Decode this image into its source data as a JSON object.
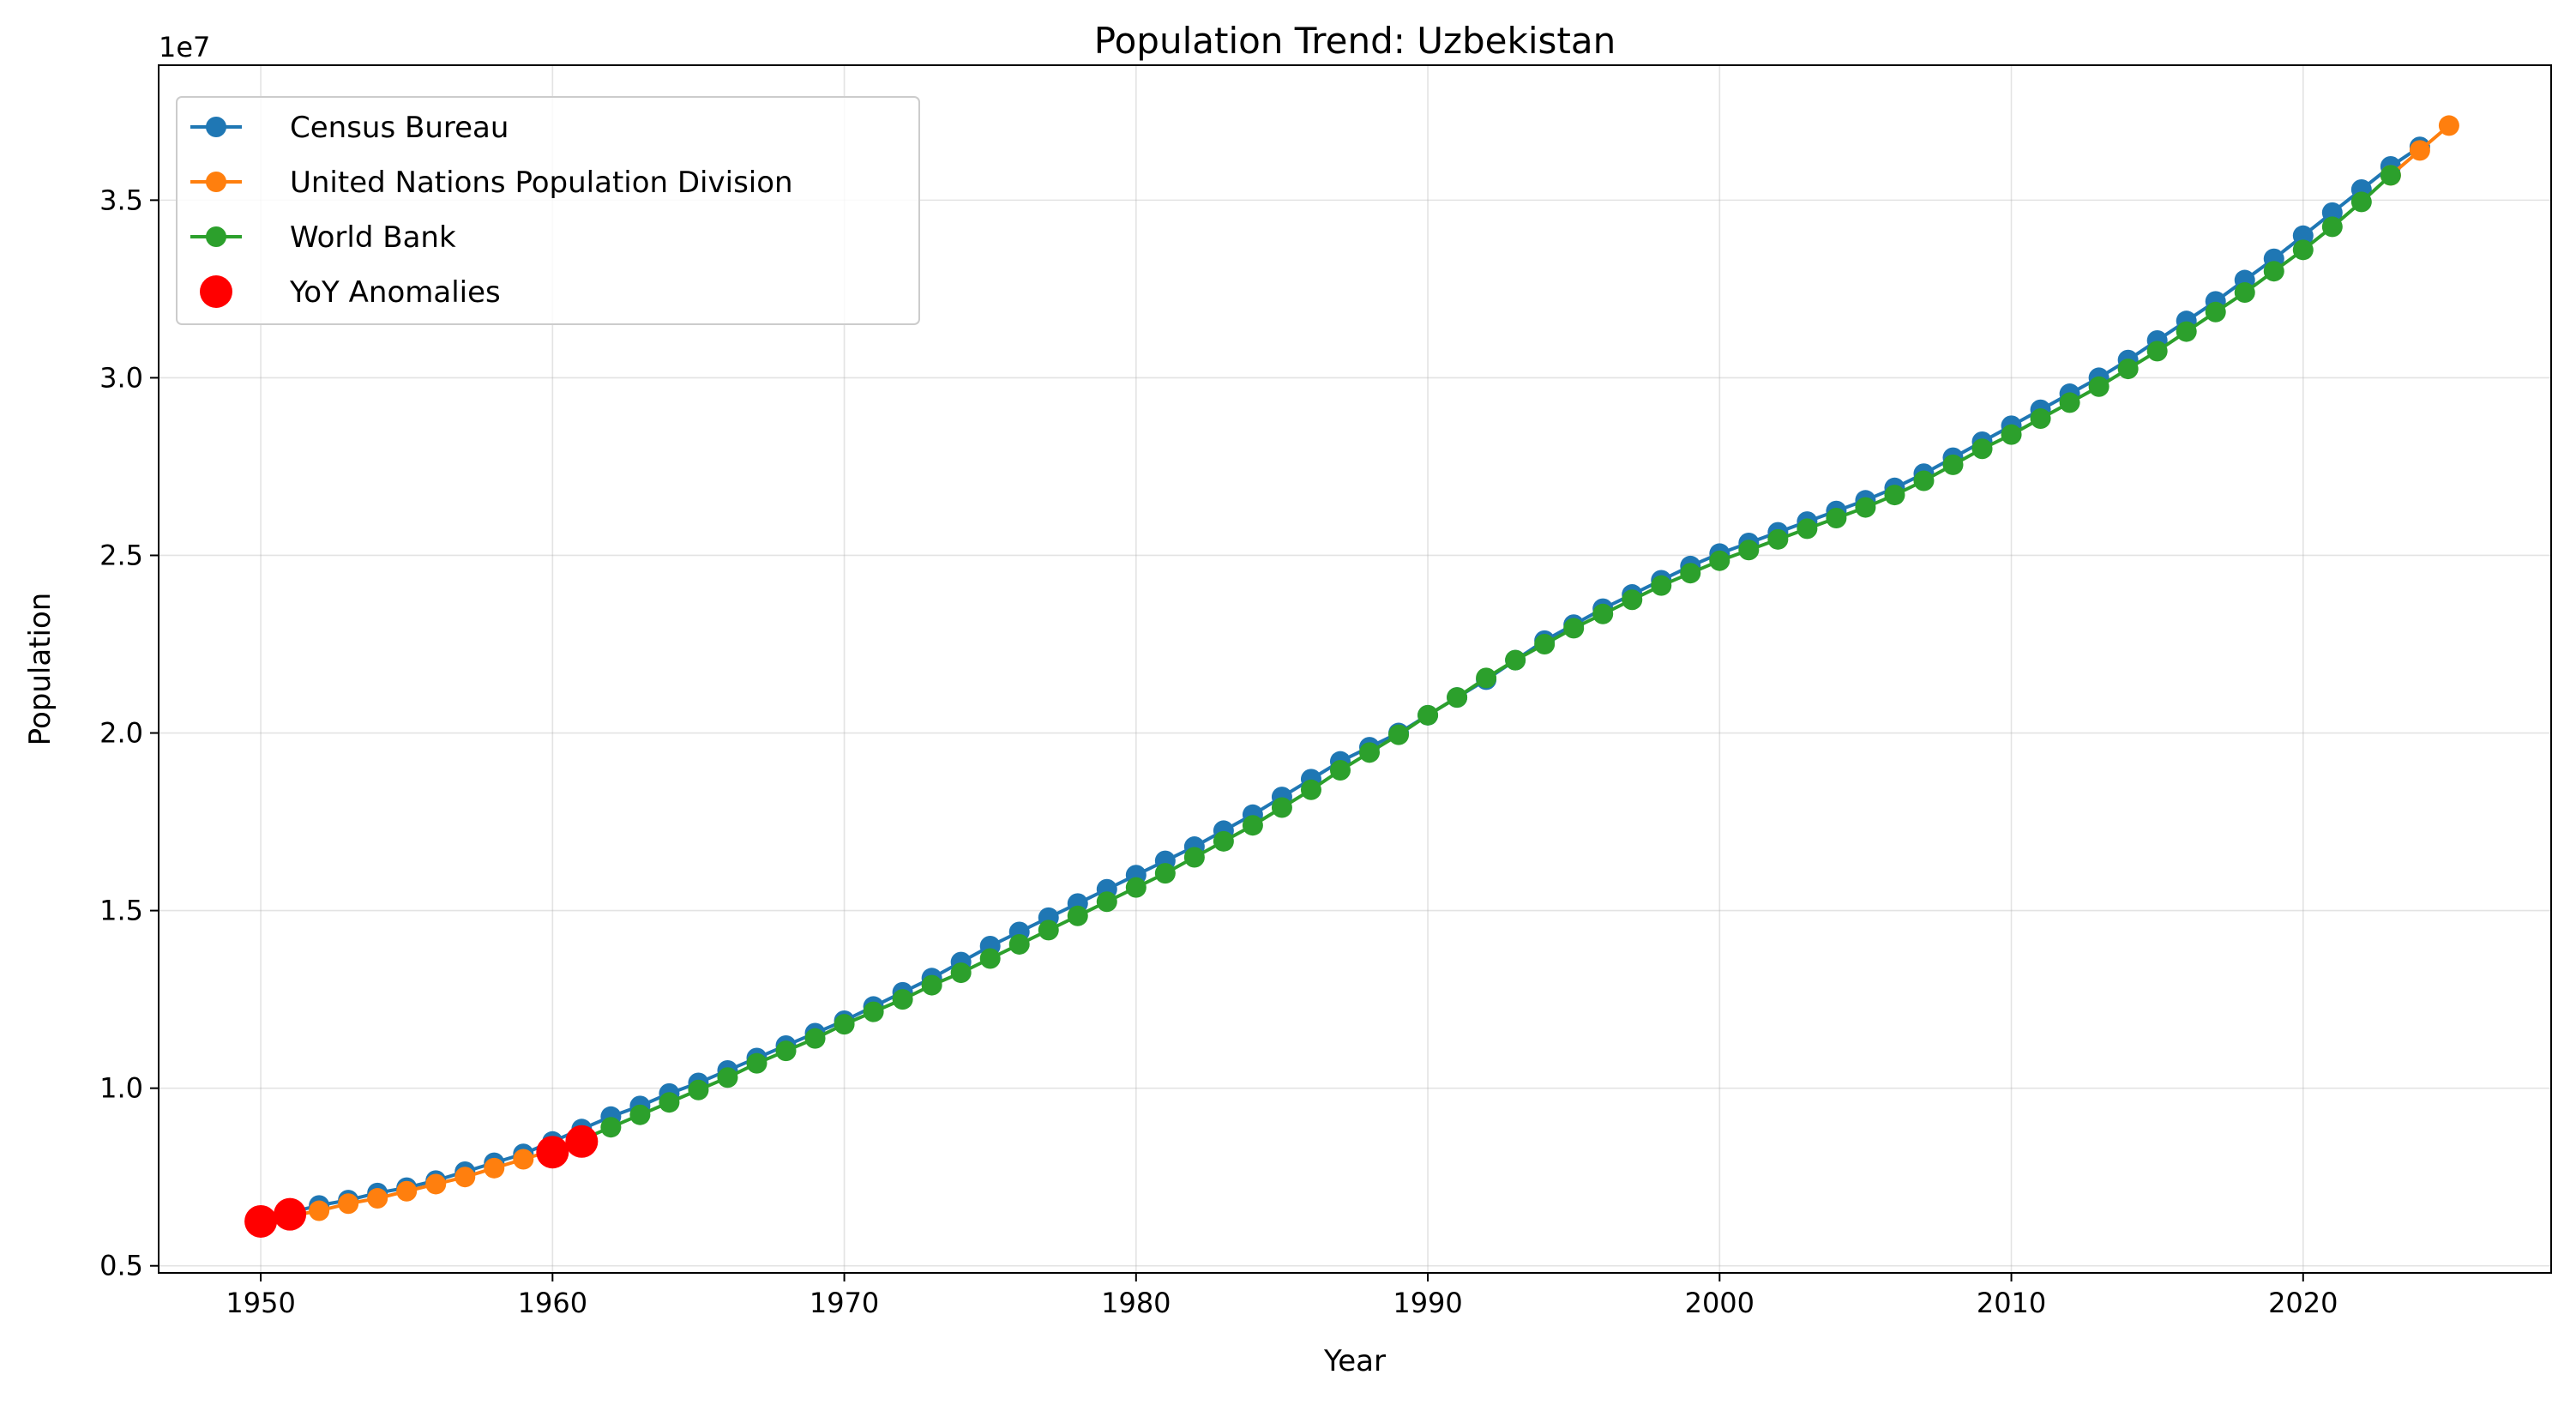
{
  "chart_data": {
    "type": "line",
    "title": "Population Trend: Uzbekistan",
    "xlabel": "Year",
    "ylabel": "Population",
    "y_offset_label": "1e7",
    "xlim": [
      1946.5,
      2028.5
    ],
    "ylim": [
      4.8,
      38.8
    ],
    "y_scale_factor": 10000000,
    "x_ticks": [
      1950,
      1960,
      1970,
      1980,
      1990,
      2000,
      2010,
      2020
    ],
    "y_ticks": [
      0.5,
      1.0,
      1.5,
      2.0,
      2.5,
      3.0,
      3.5
    ],
    "y_tick_labels": [
      "0.5",
      "1.0",
      "1.5",
      "2.0",
      "2.5",
      "3.0",
      "3.5"
    ],
    "grid": true,
    "legend_position": "upper-left",
    "series": [
      {
        "name": "Census Bureau",
        "color": "#1f77b4",
        "x": [
          1950,
          1951,
          1952,
          1953,
          1954,
          1955,
          1956,
          1957,
          1958,
          1959,
          1960,
          1961,
          1962,
          1963,
          1964,
          1965,
          1966,
          1967,
          1968,
          1969,
          1970,
          1971,
          1972,
          1973,
          1974,
          1975,
          1976,
          1977,
          1978,
          1979,
          1980,
          1981,
          1982,
          1983,
          1984,
          1985,
          1986,
          1987,
          1988,
          1989,
          1990,
          1991,
          1992,
          1993,
          1994,
          1995,
          1996,
          1997,
          1998,
          1999,
          2000,
          2001,
          2002,
          2003,
          2004,
          2005,
          2006,
          2007,
          2008,
          2009,
          2010,
          2011,
          2012,
          2013,
          2014,
          2015,
          2016,
          2017,
          2018,
          2019,
          2020,
          2021,
          2022,
          2023,
          2024
        ],
        "y": [
          6.3,
          6.5,
          6.7,
          6.85,
          7.05,
          7.2,
          7.4,
          7.65,
          7.9,
          8.15,
          8.5,
          8.85,
          9.2,
          9.5,
          9.85,
          10.15,
          10.5,
          10.85,
          11.2,
          11.55,
          11.9,
          12.3,
          12.7,
          13.1,
          13.55,
          14.0,
          14.4,
          14.8,
          15.2,
          15.6,
          16.0,
          16.4,
          16.8,
          17.25,
          17.7,
          18.2,
          18.7,
          19.2,
          19.6,
          20.0,
          20.5,
          21.0,
          21.5,
          22.05,
          22.6,
          23.05,
          23.5,
          23.9,
          24.3,
          24.7,
          25.05,
          25.35,
          25.65,
          25.95,
          26.25,
          26.55,
          26.9,
          27.3,
          27.75,
          28.2,
          28.65,
          29.1,
          29.55,
          30.0,
          30.5,
          31.05,
          31.6,
          32.15,
          32.75,
          33.35,
          34.0,
          34.65,
          35.3,
          35.95,
          36.5
        ]
      },
      {
        "name": "United Nations Population Division",
        "color": "#ff7f0e",
        "x": [
          1950,
          1951,
          1952,
          1953,
          1954,
          1955,
          1956,
          1957,
          1958,
          1959,
          1960,
          1961,
          2023,
          2024,
          2025
        ],
        "y": [
          6.25,
          6.4,
          6.55,
          6.75,
          6.9,
          7.1,
          7.3,
          7.5,
          7.75,
          8.0,
          8.25,
          8.55,
          35.7,
          36.4,
          37.1
        ]
      },
      {
        "name": "World Bank",
        "color": "#2ca02c",
        "x": [
          1960,
          1961,
          1962,
          1963,
          1964,
          1965,
          1966,
          1967,
          1968,
          1969,
          1970,
          1971,
          1972,
          1973,
          1974,
          1975,
          1976,
          1977,
          1978,
          1979,
          1980,
          1981,
          1982,
          1983,
          1984,
          1985,
          1986,
          1987,
          1988,
          1989,
          1990,
          1991,
          1992,
          1993,
          1994,
          1995,
          1996,
          1997,
          1998,
          1999,
          2000,
          2001,
          2002,
          2003,
          2004,
          2005,
          2006,
          2007,
          2008,
          2009,
          2010,
          2011,
          2012,
          2013,
          2014,
          2015,
          2016,
          2017,
          2018,
          2019,
          2020,
          2021,
          2022,
          2023
        ],
        "y": [
          8.2,
          8.55,
          8.9,
          9.25,
          9.6,
          9.95,
          10.3,
          10.7,
          11.05,
          11.4,
          11.8,
          12.15,
          12.5,
          12.9,
          13.25,
          13.65,
          14.05,
          14.45,
          14.85,
          15.25,
          15.65,
          16.05,
          16.5,
          16.95,
          17.4,
          17.9,
          18.4,
          18.95,
          19.45,
          19.95,
          20.5,
          21.0,
          21.55,
          22.05,
          22.5,
          22.95,
          23.35,
          23.75,
          24.15,
          24.5,
          24.85,
          25.15,
          25.45,
          25.75,
          26.05,
          26.35,
          26.7,
          27.1,
          27.55,
          28.0,
          28.4,
          28.85,
          29.3,
          29.75,
          30.25,
          30.75,
          31.3,
          31.85,
          32.4,
          33.0,
          33.6,
          34.25,
          34.95,
          35.7
        ]
      },
      {
        "name": "YoY Anomalies",
        "color": "#ff0000",
        "marker_only": true,
        "x": [
          1950,
          1951,
          1960,
          1961
        ],
        "y": [
          6.25,
          6.45,
          8.2,
          8.5
        ]
      }
    ]
  }
}
